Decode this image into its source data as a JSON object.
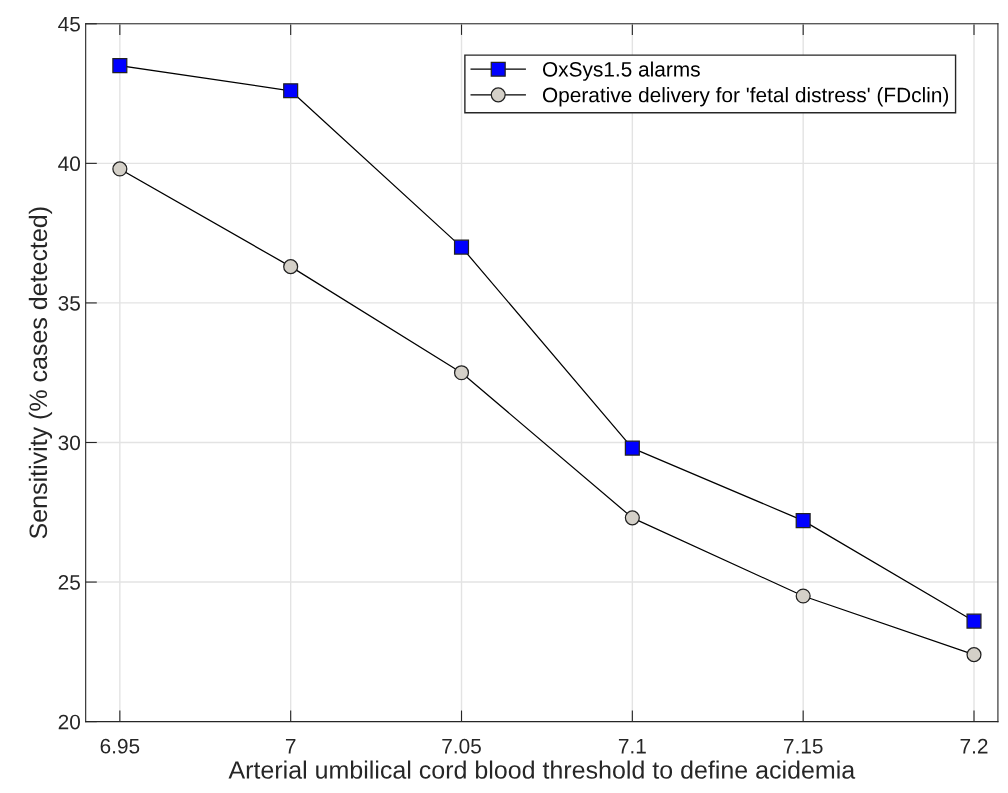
{
  "chart_data": {
    "type": "line",
    "xlabel": "Arterial umbilical cord blood threshold to define acidemia",
    "ylabel": "Sensitivity (% cases detected)",
    "x": [
      6.95,
      7,
      7.05,
      7.1,
      7.15,
      7.2
    ],
    "series": [
      {
        "name": "OxSys1.5 alarms",
        "color": "#0000ff",
        "marker": "square",
        "values": [
          43.5,
          42.6,
          37.0,
          29.8,
          27.2,
          23.6
        ]
      },
      {
        "name": "Operative delivery for 'fetal distress' (FDclin)",
        "color": "#d4d0c8",
        "marker": "circle",
        "values": [
          39.8,
          36.3,
          32.5,
          27.3,
          24.5,
          22.4
        ]
      }
    ],
    "xlim": [
      6.94,
      7.207
    ],
    "ylim": [
      20,
      45
    ],
    "xticks": [
      6.95,
      7,
      7.05,
      7.1,
      7.15,
      7.2
    ],
    "yticks": [
      20,
      25,
      30,
      35,
      40,
      45
    ],
    "grid": true,
    "legend": "top right",
    "line_style": "solid"
  }
}
